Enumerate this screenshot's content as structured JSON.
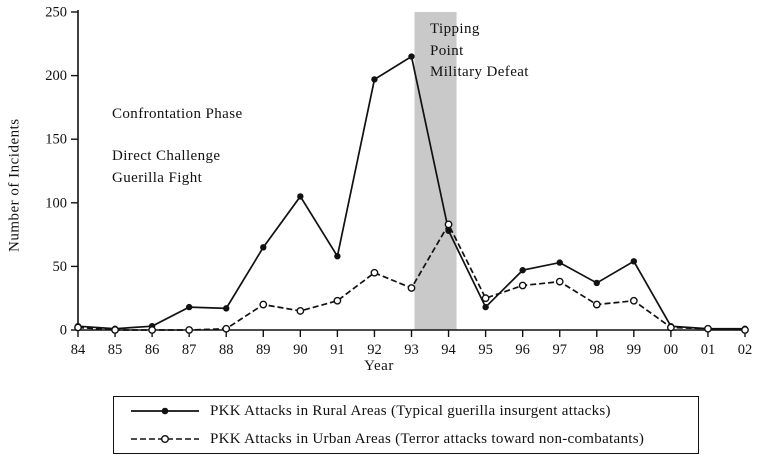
{
  "figure": {
    "ylabel": "Number of Incidents",
    "xlabel": "Year"
  },
  "annotations": {
    "phase_title": "Confrontation Phase",
    "phase_line1": "Direct Challenge",
    "phase_line2": "Guerilla Fight",
    "tipping_line1": "Tipping",
    "tipping_line2": "Point",
    "tipping_line3": "Military Defeat"
  },
  "chart_data": {
    "type": "line",
    "title": "",
    "xlabel": "Year",
    "ylabel": "Number of Incidents",
    "categories": [
      "84",
      "85",
      "86",
      "87",
      "88",
      "89",
      "90",
      "91",
      "92",
      "93",
      "94",
      "95",
      "96",
      "97",
      "98",
      "99",
      "00",
      "01",
      "02"
    ],
    "series": [
      {
        "name": "PKK Attacks in Rural Areas (Typical guerilla insurgent attacks)",
        "style": "solid-filled",
        "values": [
          3,
          1,
          3,
          18,
          17,
          65,
          105,
          58,
          197,
          215,
          78,
          18,
          47,
          53,
          37,
          54,
          3,
          1,
          1
        ]
      },
      {
        "name": "PKK Attacks in Urban Areas (Terror attacks toward non-combatants)",
        "style": "dashed-open",
        "values": [
          2,
          0,
          0,
          0,
          1,
          20,
          15,
          23,
          45,
          33,
          83,
          25,
          35,
          38,
          20,
          23,
          2,
          1,
          0
        ]
      }
    ],
    "ylim": [
      0,
      250
    ],
    "yticks": [
      0,
      50,
      100,
      150,
      200,
      250
    ],
    "highlight_band": {
      "from_year": "93",
      "to_year": "94",
      "color": "#c9c9c9"
    },
    "grid": false,
    "legend_position": "bottom",
    "line_color": "#111111"
  }
}
